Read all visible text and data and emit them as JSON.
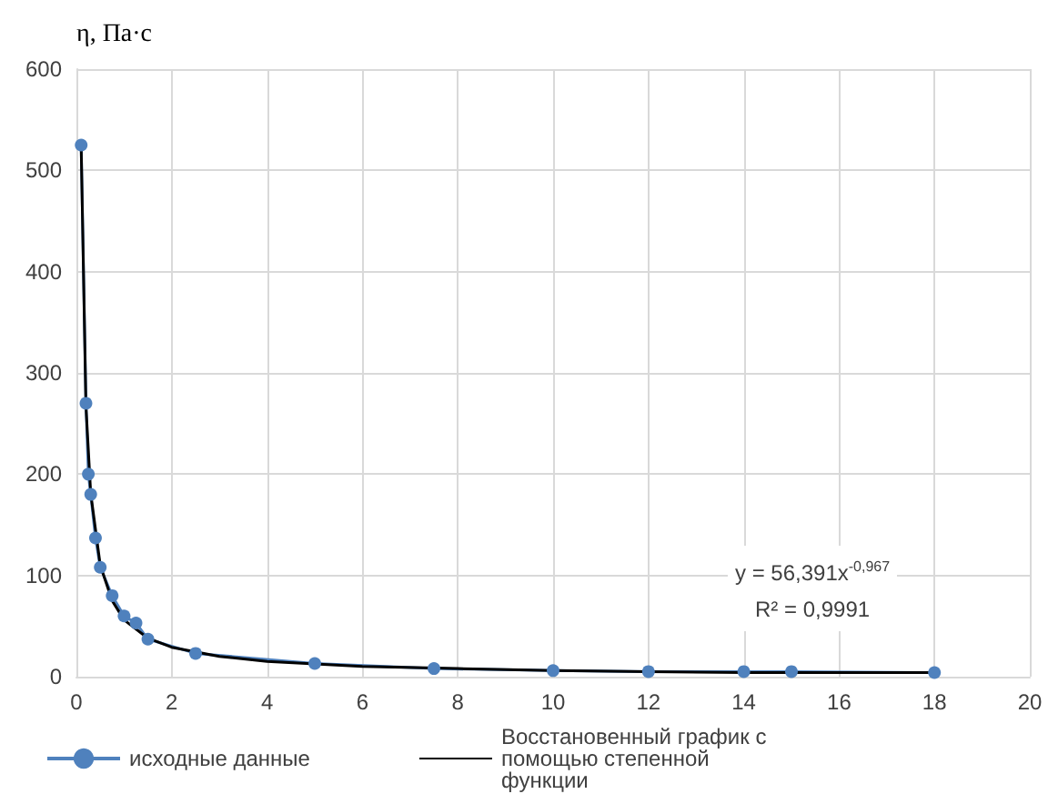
{
  "chart_data": {
    "type": "line",
    "ylabel": "η, Па·с",
    "xlim": [
      0,
      20
    ],
    "xticks": [
      0,
      2,
      4,
      6,
      8,
      10,
      12,
      14,
      16,
      18,
      20
    ],
    "ylim": [
      0,
      600
    ],
    "yticks": [
      0,
      100,
      200,
      300,
      400,
      500,
      600
    ],
    "grid": true,
    "legend": "bottom",
    "series": [
      {
        "name": "исходные данные",
        "color": "#4f81bd",
        "marker": "circle",
        "x": [
          0.1,
          0.2,
          0.25,
          0.3,
          0.4,
          0.5,
          0.75,
          1,
          1.25,
          1.5,
          2.5,
          5,
          7.5,
          10,
          12,
          14,
          15,
          18
        ],
        "values": [
          525,
          270,
          200,
          180,
          137,
          108,
          80,
          60,
          53,
          37,
          23,
          13,
          8,
          6,
          5,
          5,
          5,
          4
        ]
      },
      {
        "name": "Восстановенный график с помощью степенной функции",
        "color": "#000000",
        "marker": "none",
        "x": [
          0.1,
          0.2,
          0.3,
          0.5,
          0.75,
          1,
          1.5,
          2,
          3,
          4,
          6,
          8,
          10,
          12,
          14,
          16,
          18
        ],
        "values": [
          523,
          267,
          181,
          110,
          75,
          56,
          38,
          29,
          20,
          15,
          10,
          8,
          6,
          5,
          4,
          4,
          4
        ]
      }
    ],
    "annotations": [
      "y = 56,391x$^{-0,967}$",
      "R² = 0,9991"
    ]
  }
}
